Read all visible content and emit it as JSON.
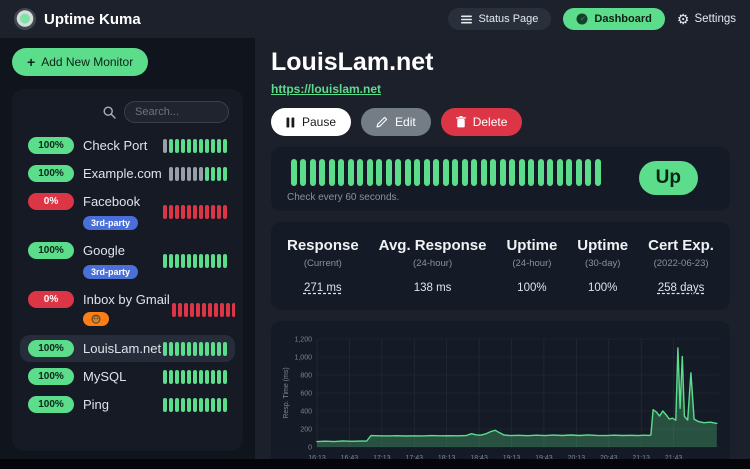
{
  "app": {
    "title": "Uptime Kuma"
  },
  "topbar": {
    "status_page": "Status Page",
    "dashboard": "Dashboard",
    "settings": "Settings"
  },
  "sidebar": {
    "add_button": "Add New Monitor",
    "search_placeholder": "Search...",
    "monitors": [
      {
        "uptime": "100%",
        "status": "up",
        "name": "Check Port",
        "active": false,
        "tags": [],
        "beats": [
          {
            "color": "#989fa7",
            "count": 1
          },
          {
            "color": "#5cdd8b",
            "count": 10
          }
        ]
      },
      {
        "uptime": "100%",
        "status": "up",
        "name": "Example.com",
        "active": false,
        "tags": [],
        "beats": [
          {
            "color": "#989fa7",
            "count": 6
          },
          {
            "color": "#5cdd8b",
            "count": 4
          }
        ]
      },
      {
        "uptime": "0%",
        "status": "down",
        "name": "Facebook",
        "active": false,
        "tags": [
          {
            "text": "3rd-party",
            "icon": "",
            "bg": "#4a6fd8"
          }
        ],
        "beats": [
          {
            "color": "#dc3545",
            "count": 11
          }
        ]
      },
      {
        "uptime": "100%",
        "status": "up",
        "name": "Google",
        "active": false,
        "tags": [
          {
            "text": "3rd-party",
            "icon": "",
            "bg": "#4a6fd8"
          }
        ],
        "beats": [
          {
            "color": "#5cdd8b",
            "count": 11
          }
        ]
      },
      {
        "uptime": "0%",
        "status": "down",
        "name": "Inbox by Gmail",
        "active": false,
        "tags": [
          {
            "text": "",
            "icon": "monkey-emoji-icon",
            "bg": "#fd7e14"
          }
        ],
        "beats": [
          {
            "color": "#dc3545",
            "count": 11
          }
        ]
      },
      {
        "uptime": "100%",
        "status": "up",
        "name": "LouisLam.net",
        "active": true,
        "tags": [],
        "beats": [
          {
            "color": "#5cdd8b",
            "count": 11
          }
        ]
      },
      {
        "uptime": "100%",
        "status": "up",
        "name": "MySQL",
        "active": false,
        "tags": [],
        "beats": [
          {
            "color": "#5cdd8b",
            "count": 11
          }
        ]
      },
      {
        "uptime": "100%",
        "status": "up",
        "name": "Ping",
        "active": false,
        "tags": [],
        "beats": [
          {
            "color": "#5cdd8b",
            "count": 11
          }
        ]
      }
    ]
  },
  "monitor_detail": {
    "title": "LouisLam.net",
    "url": "https://louislam.net",
    "buttons": {
      "pause": "Pause",
      "edit": "Edit",
      "delete": "Delete"
    },
    "status_badge": "Up",
    "check_interval": "Check every 60 seconds.",
    "beats": [
      {
        "color": "#5cdd8b",
        "count": 33
      }
    ],
    "stats": [
      {
        "label": "Response",
        "sub": "(Current)",
        "value": "271 ms",
        "underline": true
      },
      {
        "label": "Avg. Response",
        "sub": "(24-hour)",
        "value": "138 ms",
        "underline": false
      },
      {
        "label": "Uptime",
        "sub": "(24-hour)",
        "value": "100%",
        "underline": false
      },
      {
        "label": "Uptime",
        "sub": "(30-day)",
        "value": "100%",
        "underline": false
      },
      {
        "label": "Cert Exp.",
        "sub": "(2022-06-23)",
        "value": "258 days",
        "underline": true
      }
    ]
  },
  "chart_data": {
    "type": "area",
    "title": "",
    "xlabel": "",
    "ylabel": "Resp. Time (ms)",
    "ylim": [
      0,
      1200
    ],
    "yticks": [
      0,
      200,
      400,
      600,
      800,
      1000,
      1200
    ],
    "ytick_labels": [
      "0",
      "200",
      "400",
      "600",
      "800",
      "1,000",
      "1,200"
    ],
    "xticks": [
      "16:13",
      "16:43",
      "17:13",
      "17:43",
      "18:13",
      "18:43",
      "19:13",
      "19:43",
      "20:13",
      "20:43",
      "21:13",
      "21:43"
    ],
    "xtick_minutes": [
      0,
      30,
      60,
      90,
      120,
      150,
      180,
      210,
      240,
      270,
      300,
      330
    ],
    "xlim": [
      0,
      372
    ],
    "grid": true,
    "legend_position": "none",
    "line_color": "#5cdd8b",
    "fill_color": "rgba(92,221,139,0.28)",
    "points": [
      [
        0,
        60
      ],
      [
        8,
        64
      ],
      [
        16,
        60
      ],
      [
        24,
        68
      ],
      [
        32,
        63
      ],
      [
        40,
        66
      ],
      [
        46,
        67
      ],
      [
        50,
        127
      ],
      [
        58,
        125
      ],
      [
        66,
        123
      ],
      [
        74,
        126
      ],
      [
        82,
        122
      ],
      [
        90,
        125
      ],
      [
        98,
        123
      ],
      [
        106,
        127
      ],
      [
        114,
        124
      ],
      [
        122,
        126
      ],
      [
        130,
        124
      ],
      [
        138,
        127
      ],
      [
        143,
        148
      ],
      [
        147,
        136
      ],
      [
        151,
        131
      ],
      [
        156,
        146
      ],
      [
        161,
        172
      ],
      [
        165,
        186
      ],
      [
        169,
        158
      ],
      [
        173,
        133
      ],
      [
        179,
        127
      ],
      [
        187,
        130
      ],
      [
        195,
        126
      ],
      [
        203,
        131
      ],
      [
        211,
        127
      ],
      [
        219,
        132
      ],
      [
        227,
        128
      ],
      [
        235,
        133
      ],
      [
        243,
        128
      ],
      [
        251,
        134
      ],
      [
        259,
        129
      ],
      [
        267,
        127
      ],
      [
        275,
        131
      ],
      [
        283,
        128
      ],
      [
        291,
        130
      ],
      [
        297,
        127
      ],
      [
        303,
        131
      ],
      [
        307,
        129
      ],
      [
        309,
        134
      ],
      [
        311,
        415
      ],
      [
        314,
        390
      ],
      [
        317,
        345
      ],
      [
        320,
        400
      ],
      [
        323,
        360
      ],
      [
        326,
        310
      ],
      [
        329,
        320
      ],
      [
        332,
        298
      ],
      [
        334,
        1100
      ],
      [
        336,
        430
      ],
      [
        338,
        1005
      ],
      [
        340,
        340
      ],
      [
        343,
        300
      ],
      [
        346,
        825
      ],
      [
        349,
        310
      ],
      [
        353,
        282
      ],
      [
        358,
        270
      ],
      [
        364,
        276
      ],
      [
        370,
        262
      ]
    ]
  },
  "colors": {
    "green": "#5cdd8b",
    "red": "#dc3545",
    "badge_text_dark": "#0b2616",
    "grid": "#262d39",
    "tick_text": "#7b8494"
  }
}
